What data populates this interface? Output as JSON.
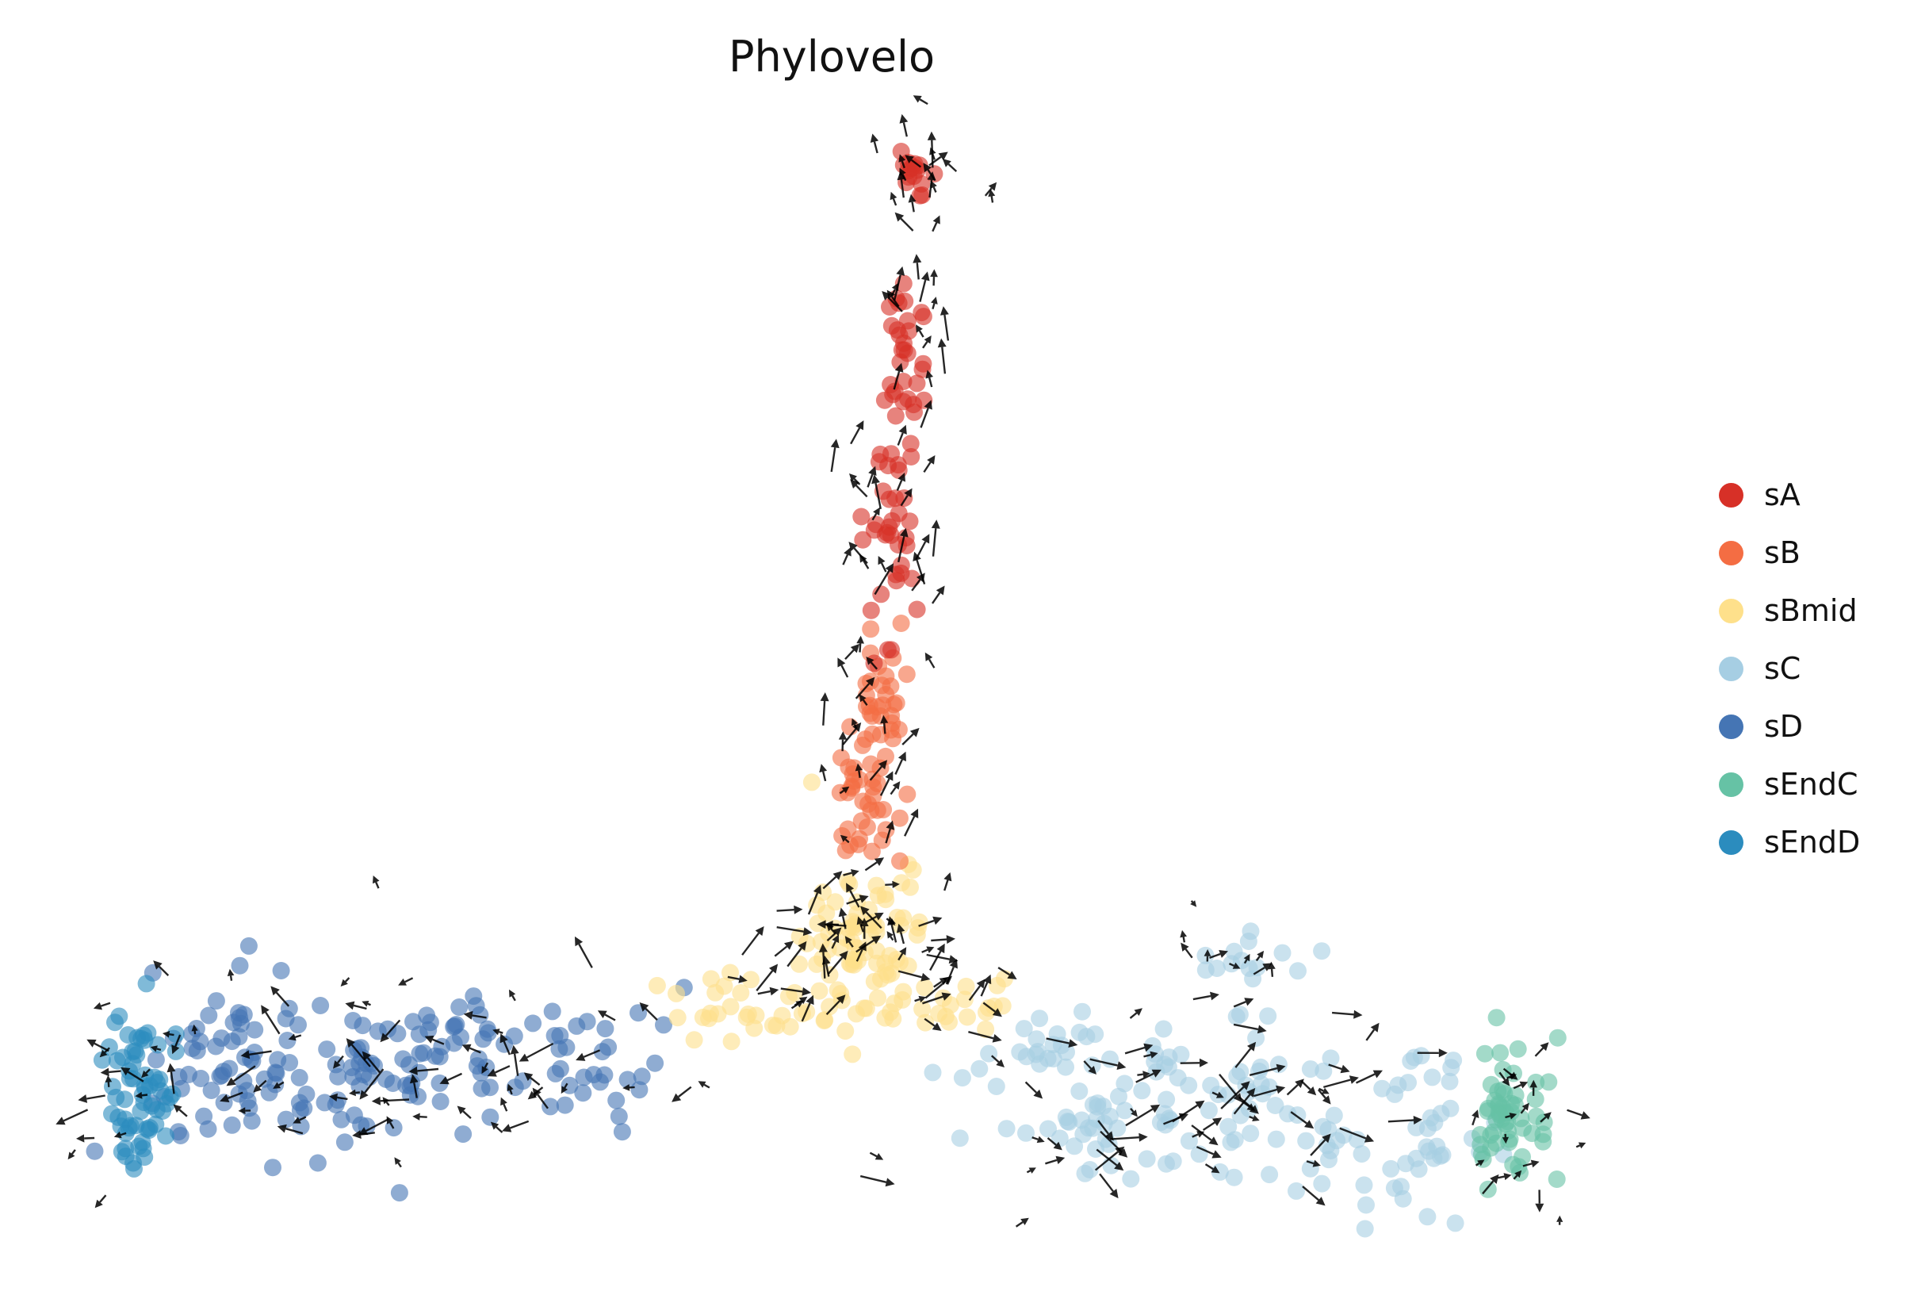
{
  "chart_data": {
    "type": "scatter",
    "title": "Phylovelo",
    "background": "#ffffff",
    "grid": false,
    "axes_visible": false,
    "legend_position": "right",
    "point_radius_px": 11,
    "point_opacity": 0.6,
    "arrow_color": "#000000",
    "arrow_opacity": 0.85,
    "legend": [
      {
        "label": "sA",
        "color": "#d73027"
      },
      {
        "label": "sB",
        "color": "#f46d43"
      },
      {
        "label": "sBmid",
        "color": "#fee08b"
      },
      {
        "label": "sC",
        "color": "#a6cee3"
      },
      {
        "label": "sD",
        "color": "#4575b4"
      },
      {
        "label": "sEndC",
        "color": "#66c2a5"
      },
      {
        "label": "sEndD",
        "color": "#2b8cbe"
      }
    ],
    "clusters": [
      {
        "label": "sC",
        "color": "#a6cee3",
        "blobs": [
          {
            "cx": 0.615,
            "cy": 0.855,
            "sx": 0.05,
            "sy": 0.03,
            "n": 105
          },
          {
            "cx": 0.73,
            "cy": 0.875,
            "sx": 0.032,
            "sy": 0.03,
            "n": 45
          },
          {
            "cx": 0.645,
            "cy": 0.745,
            "sx": 0.013,
            "sy": 0.012,
            "n": 14
          },
          {
            "cx": 0.545,
            "cy": 0.805,
            "sx": 0.016,
            "sy": 0.016,
            "n": 18
          }
        ]
      },
      {
        "label": "sD",
        "color": "#4575b4",
        "blobs": [
          {
            "cx": 0.135,
            "cy": 0.825,
            "sx": 0.03,
            "sy": 0.033,
            "n": 85
          },
          {
            "cx": 0.23,
            "cy": 0.815,
            "sx": 0.035,
            "sy": 0.026,
            "n": 70
          },
          {
            "cx": 0.315,
            "cy": 0.822,
            "sx": 0.02,
            "sy": 0.02,
            "n": 25
          }
        ]
      },
      {
        "label": "sBmid",
        "color": "#fee08b",
        "blobs": [
          {
            "cx": 0.447,
            "cy": 0.73,
            "sx": 0.017,
            "sy": 0.03,
            "n": 90
          },
          {
            "cx": 0.39,
            "cy": 0.775,
            "sx": 0.026,
            "sy": 0.016,
            "n": 28
          },
          {
            "cx": 0.5,
            "cy": 0.775,
            "sx": 0.016,
            "sy": 0.014,
            "n": 16
          }
        ]
      },
      {
        "label": "sB",
        "color": "#f46d43",
        "blobs": [
          {
            "cx": 0.455,
            "cy": 0.55,
            "sx": 0.008,
            "sy": 0.032,
            "n": 38
          },
          {
            "cx": 0.449,
            "cy": 0.625,
            "sx": 0.01,
            "sy": 0.022,
            "n": 30
          }
        ]
      },
      {
        "label": "sA",
        "color": "#d73027",
        "blobs": [
          {
            "cx": 0.474,
            "cy": 0.132,
            "sx": 0.006,
            "sy": 0.01,
            "n": 16
          },
          {
            "cx": 0.47,
            "cy": 0.255,
            "sx": 0.0065,
            "sy": 0.04,
            "n": 28
          },
          {
            "cx": 0.464,
            "cy": 0.405,
            "sx": 0.0065,
            "sy": 0.048,
            "n": 40
          }
        ]
      },
      {
        "label": "sEndC",
        "color": "#66c2a5",
        "blobs": [
          {
            "cx": 0.785,
            "cy": 0.857,
            "sx": 0.01,
            "sy": 0.026,
            "n": 55
          }
        ]
      },
      {
        "label": "sEndD",
        "color": "#2b8cbe",
        "blobs": [
          {
            "cx": 0.072,
            "cy": 0.845,
            "sx": 0.009,
            "sy": 0.032,
            "n": 65
          }
        ]
      }
    ],
    "arrow_regions": [
      {
        "cx": 0.474,
        "cy": 0.125,
        "sx": 0.02,
        "sy": 0.022,
        "n": 14,
        "dir": 90,
        "jit": 70,
        "lmin": 14,
        "lmax": 38
      },
      {
        "cx": 0.47,
        "cy": 0.25,
        "sx": 0.015,
        "sy": 0.05,
        "n": 22,
        "dir": 90,
        "jit": 45,
        "lmin": 16,
        "lmax": 46
      },
      {
        "cx": 0.463,
        "cy": 0.43,
        "sx": 0.015,
        "sy": 0.055,
        "n": 24,
        "dir": 90,
        "jit": 45,
        "lmin": 16,
        "lmax": 48
      },
      {
        "cx": 0.452,
        "cy": 0.585,
        "sx": 0.016,
        "sy": 0.04,
        "n": 20,
        "dir": 90,
        "jit": 55,
        "lmin": 14,
        "lmax": 42
      },
      {
        "cx": 0.408,
        "cy": 0.745,
        "sx": 0.024,
        "sy": 0.028,
        "n": 20,
        "dir": 40,
        "jit": 55,
        "lmin": 16,
        "lmax": 46
      },
      {
        "cx": 0.447,
        "cy": 0.715,
        "sx": 0.018,
        "sy": 0.032,
        "n": 22,
        "dir": 90,
        "jit": 90,
        "lmin": 12,
        "lmax": 40
      },
      {
        "cx": 0.492,
        "cy": 0.75,
        "sx": 0.02,
        "sy": 0.028,
        "n": 16,
        "dir": 15,
        "jit": 55,
        "lmin": 14,
        "lmax": 44
      },
      {
        "cx": 0.2,
        "cy": 0.825,
        "sx": 0.072,
        "sy": 0.042,
        "n": 65,
        "dir": 170,
        "jit": 75,
        "lmin": 12,
        "lmax": 50
      },
      {
        "cx": 0.068,
        "cy": 0.845,
        "sx": 0.016,
        "sy": 0.048,
        "n": 16,
        "dir": 180,
        "jit": 100,
        "lmin": 10,
        "lmax": 32
      },
      {
        "cx": 0.635,
        "cy": 0.86,
        "sx": 0.07,
        "sy": 0.042,
        "n": 65,
        "dir": 0,
        "jit": 55,
        "lmin": 12,
        "lmax": 52
      },
      {
        "cx": 0.79,
        "cy": 0.875,
        "sx": 0.024,
        "sy": 0.045,
        "n": 18,
        "dir": 0,
        "jit": 90,
        "lmin": 10,
        "lmax": 36
      },
      {
        "cx": 0.645,
        "cy": 0.74,
        "sx": 0.03,
        "sy": 0.02,
        "n": 10,
        "dir": 20,
        "jit": 110,
        "lmin": 10,
        "lmax": 28
      }
    ]
  }
}
